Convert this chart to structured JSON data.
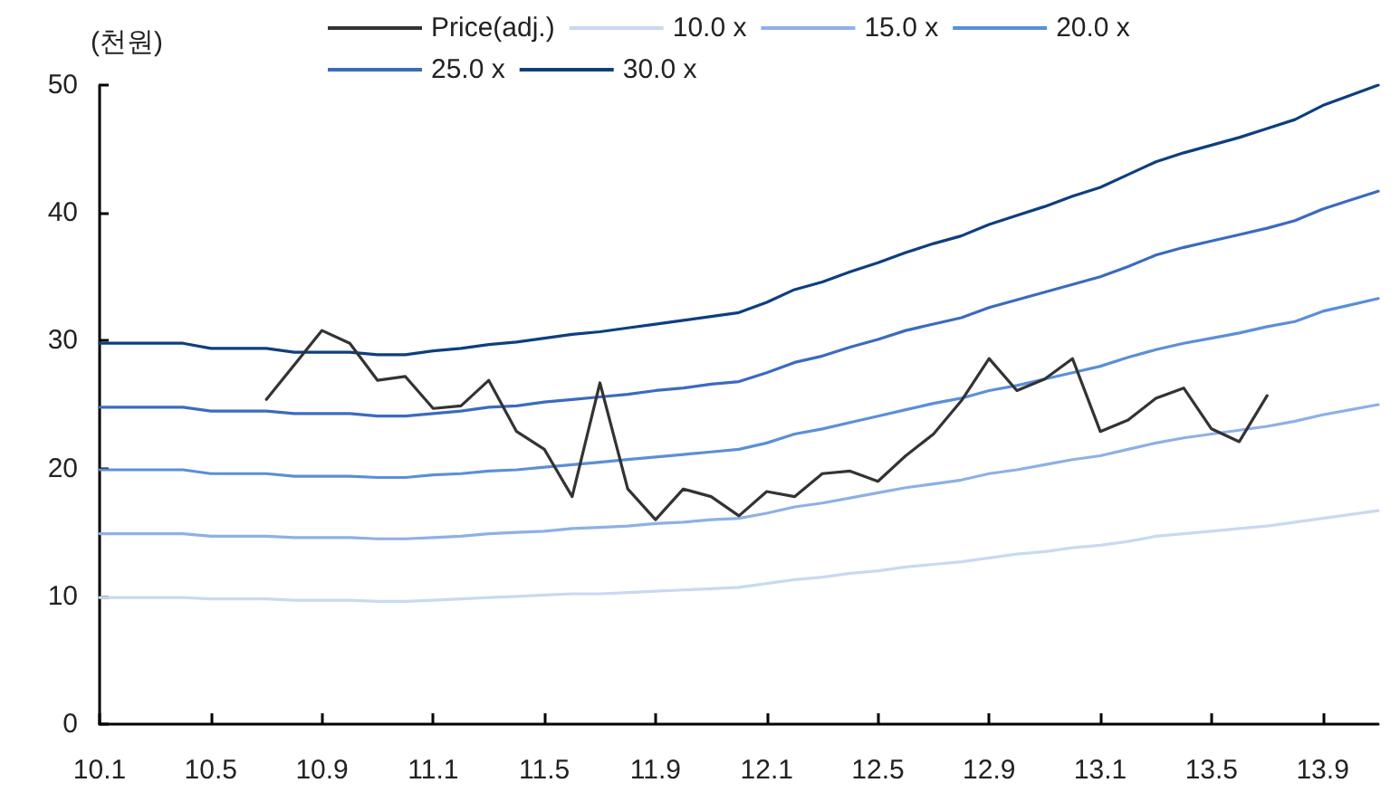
{
  "chart_data": {
    "type": "line",
    "ylabel": "(천원)",
    "categories": [
      "10.1",
      null,
      null,
      null,
      "10.5",
      null,
      null,
      null,
      "10.9",
      null,
      null,
      null,
      "11.1",
      null,
      null,
      null,
      "11.5",
      null,
      null,
      null,
      "11.9",
      null,
      null,
      null,
      "12.1",
      null,
      null,
      null,
      "12.5",
      null,
      null,
      null,
      "12.9",
      null,
      null,
      null,
      "13.1",
      null,
      null,
      null,
      "13.5",
      null,
      null,
      null,
      "13.9",
      null,
      null
    ],
    "series": [
      {
        "name": "Price(adj.)",
        "color": "#333333",
        "values": [
          null,
          null,
          null,
          null,
          null,
          null,
          25.4,
          28.1,
          30.8,
          29.8,
          26.9,
          27.2,
          24.7,
          24.9,
          26.9,
          22.9,
          21.5,
          17.8,
          26.7,
          18.4,
          16.0,
          18.4,
          17.8,
          16.3,
          18.2,
          17.8,
          19.6,
          19.8,
          19.0,
          21.0,
          22.7,
          25.3,
          28.6,
          26.1,
          27.0,
          28.6,
          22.9,
          23.8,
          25.5,
          26.3,
          23.1,
          22.1,
          25.7,
          null,
          null,
          null,
          null
        ]
      },
      {
        "name": "10.0 x",
        "color": "#c9d9f0",
        "values": [
          9.9,
          9.9,
          9.9,
          9.9,
          9.8,
          9.8,
          9.8,
          9.7,
          9.7,
          9.7,
          9.6,
          9.6,
          9.7,
          9.8,
          9.9,
          10.0,
          10.1,
          10.2,
          10.2,
          10.3,
          10.4,
          10.5,
          10.6,
          10.7,
          11.0,
          11.3,
          11.5,
          11.8,
          12.0,
          12.3,
          12.5,
          12.7,
          13.0,
          13.3,
          13.5,
          13.8,
          14.0,
          14.3,
          14.7,
          14.9,
          15.1,
          15.3,
          15.5,
          15.8,
          16.1,
          16.4,
          16.7
        ]
      },
      {
        "name": "15.0 x",
        "color": "#8db0e6",
        "values": [
          14.9,
          14.9,
          14.9,
          14.9,
          14.7,
          14.7,
          14.7,
          14.6,
          14.6,
          14.6,
          14.5,
          14.5,
          14.6,
          14.7,
          14.9,
          15.0,
          15.1,
          15.3,
          15.4,
          15.5,
          15.7,
          15.8,
          16.0,
          16.1,
          16.5,
          17.0,
          17.3,
          17.7,
          18.1,
          18.5,
          18.8,
          19.1,
          19.6,
          19.9,
          20.3,
          20.7,
          21.0,
          21.5,
          22.0,
          22.4,
          22.7,
          23.0,
          23.3,
          23.7,
          24.2,
          24.6,
          25.0
        ]
      },
      {
        "name": "20.0 x",
        "color": "#5b8fd8",
        "values": [
          19.9,
          19.9,
          19.9,
          19.9,
          19.6,
          19.6,
          19.6,
          19.4,
          19.4,
          19.4,
          19.3,
          19.3,
          19.5,
          19.6,
          19.8,
          19.9,
          20.1,
          20.3,
          20.5,
          20.7,
          20.9,
          21.1,
          21.3,
          21.5,
          22.0,
          22.7,
          23.1,
          23.6,
          24.1,
          24.6,
          25.1,
          25.5,
          26.1,
          26.5,
          27.0,
          27.5,
          28.0,
          28.7,
          29.3,
          29.8,
          30.2,
          30.6,
          31.1,
          31.5,
          32.3,
          32.8,
          33.3
        ]
      },
      {
        "name": "25.0 x",
        "color": "#3a6bbf",
        "values": [
          24.8,
          24.8,
          24.8,
          24.8,
          24.5,
          24.5,
          24.5,
          24.3,
          24.3,
          24.3,
          24.1,
          24.1,
          24.3,
          24.5,
          24.8,
          24.9,
          25.2,
          25.4,
          25.6,
          25.8,
          26.1,
          26.3,
          26.6,
          26.8,
          27.5,
          28.3,
          28.8,
          29.5,
          30.1,
          30.8,
          31.3,
          31.8,
          32.6,
          33.2,
          33.8,
          34.4,
          35.0,
          35.8,
          36.7,
          37.3,
          37.8,
          38.3,
          38.8,
          39.4,
          40.3,
          41.0,
          41.7
        ]
      },
      {
        "name": "30.0 x",
        "color": "#0d3f7f",
        "values": [
          29.8,
          29.8,
          29.8,
          29.8,
          29.4,
          29.4,
          29.4,
          29.1,
          29.1,
          29.1,
          28.9,
          28.9,
          29.2,
          29.4,
          29.7,
          29.9,
          30.2,
          30.5,
          30.7,
          31.0,
          31.3,
          31.6,
          31.9,
          32.2,
          33.0,
          34.0,
          34.6,
          35.4,
          36.1,
          36.9,
          37.6,
          38.2,
          39.1,
          39.8,
          40.5,
          41.3,
          42.0,
          43.0,
          44.0,
          44.7,
          45.3,
          45.9,
          46.6,
          47.3,
          48.4,
          49.2,
          50.0
        ]
      }
    ],
    "ylim": [
      0,
      50
    ],
    "yticks": [
      0,
      10,
      20,
      30,
      40,
      50
    ],
    "grid": false,
    "legend": "top",
    "marker": "none",
    "line_style": "solid"
  }
}
